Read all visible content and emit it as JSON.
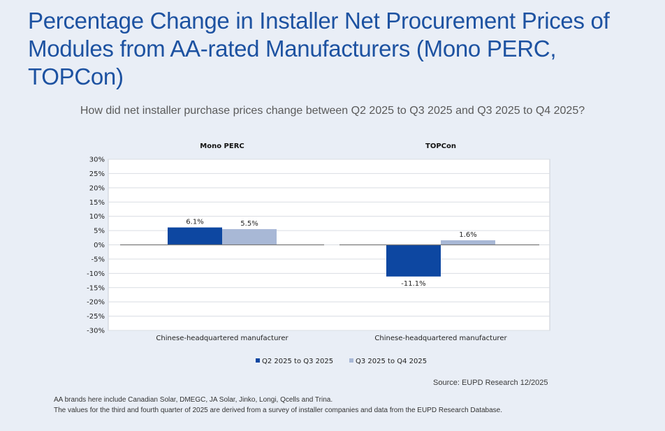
{
  "title": "Percentage Change in Installer Net Procurement Prices of Modules from AA-rated Manufacturers (Mono PERC, TOPCon)",
  "subtitle": "How did net installer purchase prices change between Q2 2025 to Q3 2025 and Q3 2025 to Q4 2025?",
  "source": "Source: EUPD Research 12/2025",
  "footnotes": [
    "AA brands here include Canadian Solar, DMEGC, JA Solar, Jinko, Longi, Qcells and Trina.",
    "The values for the third and fourth quarter of 2025 are derived from a survey of installer companies and data from the EUPD Research Database."
  ],
  "colors": {
    "q2_q3": "#0d47a1",
    "q3_q4": "#a8b8d6",
    "title": "#1d52a1",
    "background": "#e9eef6"
  },
  "chart_data": {
    "type": "bar",
    "panels": [
      {
        "title": "Mono PERC",
        "categories": [
          "Chinese-headquartered manufacturer"
        ],
        "series": [
          {
            "name": "Q2 2025 to Q3 2025",
            "values": [
              6.1
            ],
            "labels": [
              "6.1%"
            ]
          },
          {
            "name": "Q3 2025 to Q4 2025",
            "values": [
              5.5
            ],
            "labels": [
              "5.5%"
            ]
          }
        ]
      },
      {
        "title": "TOPCon",
        "categories": [
          "Chinese-headquartered manufacturer"
        ],
        "series": [
          {
            "name": "Q2 2025 to Q3 2025",
            "values": [
              -11.1
            ],
            "labels": [
              "-11.1%"
            ]
          },
          {
            "name": "Q3 2025 to Q4 2025",
            "values": [
              1.6
            ],
            "labels": [
              "1.6%"
            ]
          }
        ]
      }
    ],
    "ylim": [
      -30,
      30
    ],
    "yticks": [
      30,
      25,
      20,
      15,
      10,
      5,
      0,
      -5,
      -10,
      -15,
      -20,
      -25,
      -30
    ],
    "ytick_labels": [
      "30%",
      "25%",
      "20%",
      "15%",
      "10%",
      "5%",
      "0%",
      "-5%",
      "-10%",
      "-15%",
      "-20%",
      "-25%",
      "-30%"
    ],
    "grid": true,
    "legend": [
      "Q2 2025 to Q3 2025",
      "Q3 2025 to Q4 2025"
    ],
    "legend_position": "bottom"
  }
}
